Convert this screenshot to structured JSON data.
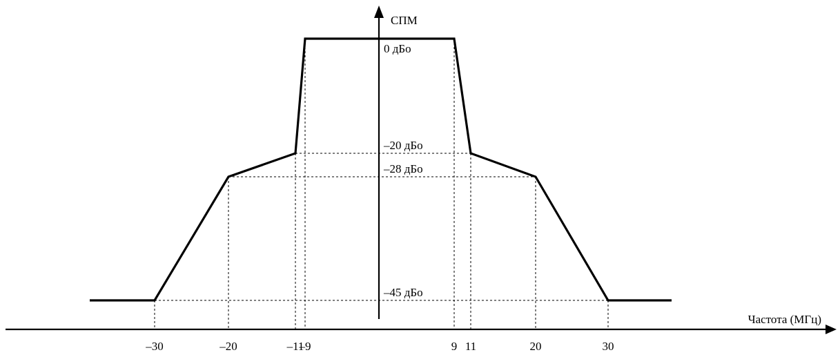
{
  "y_axis": {
    "label": "СПМ"
  },
  "x_axis": {
    "label": "Частота (МГц)"
  },
  "levels": [
    {
      "label": "0 дБо",
      "value": 0
    },
    {
      "label": "–20 дБо",
      "value": -20
    },
    {
      "label": "–28 дБо",
      "value": -28
    },
    {
      "label": "–45 дБо",
      "value": -45
    }
  ],
  "ticks": [
    {
      "label": "–30",
      "value": -30
    },
    {
      "label": "–20",
      "value": -20
    },
    {
      "label": "–11",
      "value": -11
    },
    {
      "label": "–9",
      "value": -9
    },
    {
      "label": "9",
      "value": 9
    },
    {
      "label": "11",
      "value": 11
    },
    {
      "label": "20",
      "value": 20
    },
    {
      "label": "30",
      "value": 30
    }
  ],
  "mask": {
    "points": [
      {
        "f": -30,
        "db": -45
      },
      {
        "f": -20,
        "db": -28
      },
      {
        "f": -11,
        "db": -20
      },
      {
        "f": -9,
        "db": 0
      },
      {
        "f": 9,
        "db": 0
      },
      {
        "f": 11,
        "db": -20
      },
      {
        "f": 20,
        "db": -28
      },
      {
        "f": 30,
        "db": -45
      }
    ]
  }
}
